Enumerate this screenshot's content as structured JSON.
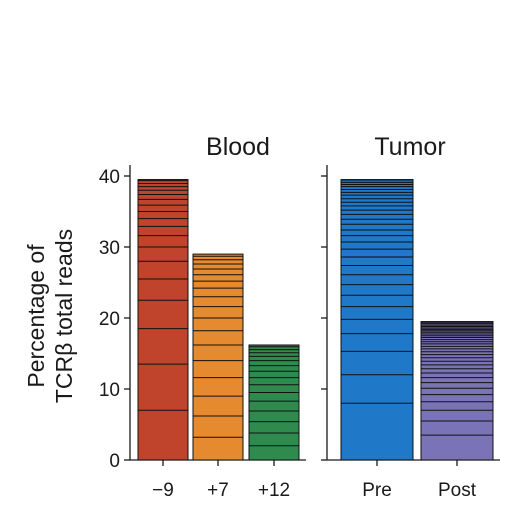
{
  "chart_data": {
    "type": "bar",
    "ylabel_lines": [
      "Percentage of",
      "TCRβ total reads"
    ],
    "ylim": [
      0,
      40
    ],
    "yticks": [
      "0",
      "10",
      "20",
      "30",
      "40"
    ],
    "grid": false,
    "panels": [
      {
        "title": "Blood",
        "categories": [
          "−9",
          "+7",
          "+12"
        ],
        "values": [
          39.5,
          29.0,
          16.2
        ],
        "colors": [
          "#c0432c",
          "#e58a2f",
          "#2f8a4e"
        ],
        "clone_bands": [
          [
            7.0,
            6.5,
            5.0,
            4.0,
            3.0,
            2.5,
            2.0,
            1.6,
            1.3,
            1.1,
            1.0,
            0.9,
            0.8,
            0.7,
            0.6,
            0.5,
            0.45,
            0.4,
            0.35,
            0.3,
            0.3,
            0.25,
            0.25,
            0.2,
            0.2
          ],
          [
            3.2,
            3.0,
            2.8,
            2.6,
            2.4,
            2.2,
            2.0,
            1.8,
            1.6,
            1.4,
            1.2,
            1.0,
            0.9,
            0.8,
            0.7,
            0.6,
            0.5,
            0.45,
            0.4,
            0.35,
            0.3,
            0.25,
            0.2,
            0.2,
            0.2,
            0.2,
            0.2
          ],
          [
            2.0,
            1.8,
            1.6,
            1.5,
            1.4,
            1.2,
            1.1,
            1.0,
            0.9,
            0.8,
            0.7,
            0.6,
            0.5,
            0.45,
            0.4,
            0.35,
            0.3,
            0.25,
            0.25,
            0.2,
            0.2,
            0.2
          ]
        ]
      },
      {
        "title": "Tumor",
        "categories": [
          "Pre",
          "Post"
        ],
        "values": [
          39.5,
          19.5
        ],
        "colors": [
          "#1f78c8",
          "#7b73b8"
        ],
        "clone_bands": [
          [
            8.0,
            4.0,
            3.3,
            2.5,
            2.0,
            1.8,
            1.6,
            1.5,
            1.4,
            1.3,
            1.2,
            1.1,
            1.0,
            0.9,
            0.8,
            0.8,
            0.7,
            0.7,
            0.6,
            0.6,
            0.5,
            0.5,
            0.5,
            0.4,
            0.4,
            0.4,
            0.3,
            0.3
          ],
          [
            3.5,
            2.0,
            1.5,
            1.2,
            1.0,
            0.9,
            0.8,
            0.7,
            0.65,
            0.6,
            0.55,
            0.5,
            0.5,
            0.45,
            0.4,
            0.4,
            0.35,
            0.35,
            0.3,
            0.3,
            0.3,
            0.25,
            0.25,
            0.25,
            0.2,
            0.2,
            0.2,
            0.2,
            0.2,
            0.2,
            0.2,
            0.2
          ]
        ]
      }
    ]
  }
}
